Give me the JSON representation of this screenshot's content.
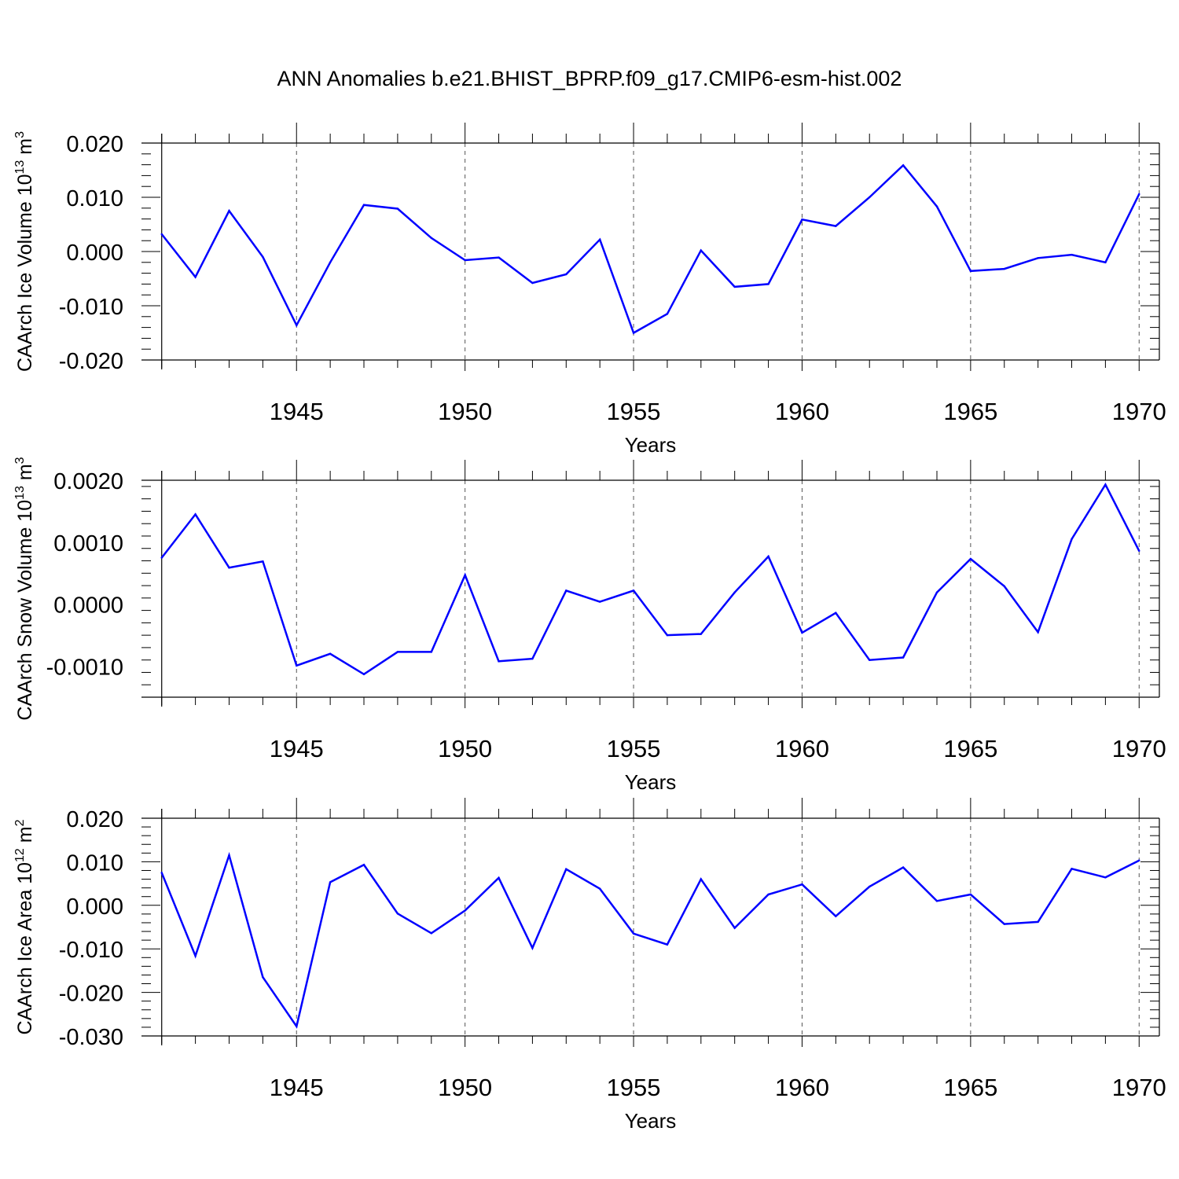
{
  "title": "ANN Anomalies b.e21.BHIST_BPRP.f09_g17.CMIP6-esm-hist.002",
  "colors": {
    "line": "#0000ff",
    "axis": "#000000",
    "grid": "#555555"
  },
  "chart_data": [
    {
      "type": "line",
      "title": "",
      "xlabel": "Years",
      "ylabel": {
        "text": "CAArch Ice Volume 10",
        "exp": "13",
        "unit": "m",
        "unit_exp": "3"
      },
      "xlim": [
        1941,
        1970
      ],
      "ylim": [
        -0.02,
        0.02
      ],
      "xticks": [
        1945,
        1950,
        1955,
        1960,
        1965,
        1970
      ],
      "yticks": [
        0.02,
        0.01,
        0.0,
        -0.01,
        -0.02
      ],
      "ytick_labels": [
        "0.020",
        "0.010",
        "0.000",
        "-0.010",
        "-0.020"
      ],
      "grid": "vertical dashed at major x ticks",
      "x": [
        1941,
        1942,
        1943,
        1944,
        1945,
        1946,
        1947,
        1948,
        1949,
        1950,
        1951,
        1952,
        1953,
        1954,
        1955,
        1956,
        1957,
        1958,
        1959,
        1960,
        1961,
        1962,
        1963,
        1964,
        1965,
        1966,
        1967,
        1968,
        1969,
        1970
      ],
      "values": [
        0.0032,
        -0.0047,
        0.0075,
        -0.001,
        -0.0136,
        -0.002,
        0.0086,
        0.0079,
        0.0025,
        -0.0016,
        -0.0011,
        -0.0058,
        -0.0042,
        0.0022,
        -0.015,
        -0.0115,
        0.0002,
        -0.0065,
        -0.006,
        0.0059,
        0.0047,
        0.01,
        0.0159,
        0.0083,
        -0.0036,
        -0.0032,
        -0.0012,
        -0.0006,
        -0.002,
        0.0106
      ]
    },
    {
      "type": "line",
      "title": "",
      "xlabel": "Years",
      "ylabel": {
        "text": "CAArch Snow Volume 10",
        "exp": "13",
        "unit": "m",
        "unit_exp": "3"
      },
      "xlim": [
        1941,
        1970
      ],
      "ylim": [
        -0.0015,
        0.002
      ],
      "xticks": [
        1945,
        1950,
        1955,
        1960,
        1965,
        1970
      ],
      "yticks": [
        0.002,
        0.001,
        0.0,
        -0.001
      ],
      "ytick_labels": [
        "0.0020",
        "0.0010",
        "0.0000",
        "-0.0010"
      ],
      "grid": "vertical dashed at major x ticks",
      "x": [
        1941,
        1942,
        1943,
        1944,
        1945,
        1946,
        1947,
        1948,
        1949,
        1950,
        1951,
        1952,
        1953,
        1954,
        1955,
        1956,
        1957,
        1958,
        1959,
        1960,
        1961,
        1962,
        1963,
        1964,
        1965,
        1966,
        1967,
        1968,
        1969,
        1970
      ],
      "values": [
        0.00075,
        0.00145,
        0.00059,
        0.00069,
        -0.00099,
        -0.0008,
        -0.00113,
        -0.00077,
        -0.00077,
        0.00047,
        -0.00092,
        -0.00088,
        0.00022,
        4e-05,
        0.00022,
        -0.0005,
        -0.00048,
        0.00019,
        0.00077,
        -0.00046,
        -0.00014,
        -0.0009,
        -0.00086,
        0.00019,
        0.00073,
        0.00029,
        -0.00045,
        0.00105,
        0.00193,
        0.00086
      ]
    },
    {
      "type": "line",
      "title": "",
      "xlabel": "Years",
      "ylabel": {
        "text": "CAArch Ice Area 10",
        "exp": "12",
        "unit": "m",
        "unit_exp": "2"
      },
      "xlim": [
        1941,
        1970
      ],
      "ylim": [
        -0.03,
        0.02
      ],
      "xticks": [
        1945,
        1950,
        1955,
        1960,
        1965,
        1970
      ],
      "yticks": [
        0.02,
        0.01,
        0.0,
        -0.01,
        -0.02,
        -0.03
      ],
      "ytick_labels": [
        "0.020",
        "0.010",
        "0.000",
        "-0.010",
        "-0.020",
        "-0.030"
      ],
      "grid": "vertical dashed at major x ticks",
      "x": [
        1941,
        1942,
        1943,
        1944,
        1945,
        1946,
        1947,
        1948,
        1949,
        1950,
        1951,
        1952,
        1953,
        1954,
        1955,
        1956,
        1957,
        1958,
        1959,
        1960,
        1961,
        1962,
        1963,
        1964,
        1965,
        1966,
        1967,
        1968,
        1969,
        1970
      ],
      "values": [
        0.0075,
        -0.0116,
        0.0115,
        -0.0165,
        -0.0278,
        0.0053,
        0.0093,
        -0.0019,
        -0.0064,
        -0.0012,
        0.0063,
        -0.0098,
        0.0083,
        0.0038,
        -0.0065,
        -0.009,
        0.006,
        -0.0052,
        0.0025,
        0.0048,
        -0.0025,
        0.0043,
        0.0087,
        0.001,
        0.0025,
        -0.0043,
        -0.0038,
        0.0084,
        0.0064,
        0.0103
      ]
    }
  ]
}
